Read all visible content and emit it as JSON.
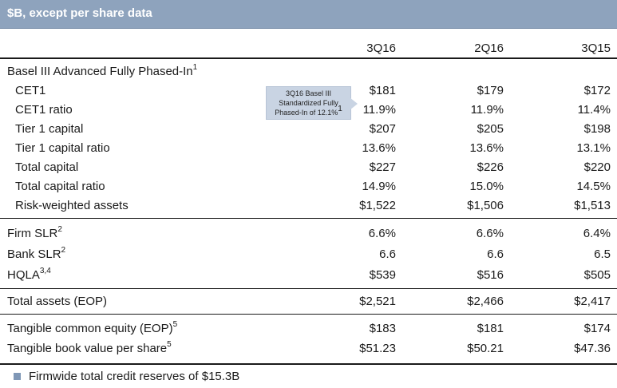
{
  "header": {
    "title": "$B, except per share data"
  },
  "columns": [
    "3Q16",
    "2Q16",
    "3Q15"
  ],
  "section": {
    "label": "Basel III Advanced Fully Phased-In",
    "sup": "1"
  },
  "rows_basel": [
    {
      "label": "CET1",
      "values": [
        "$181",
        "$179",
        "$172"
      ]
    },
    {
      "label": "CET1 ratio",
      "values": [
        "11.9%",
        "11.9%",
        "11.4%"
      ]
    },
    {
      "label": "Tier 1 capital",
      "values": [
        "$207",
        "$205",
        "$198"
      ]
    },
    {
      "label": "Tier 1 capital ratio",
      "values": [
        "13.6%",
        "13.6%",
        "13.1%"
      ]
    },
    {
      "label": "Total capital",
      "values": [
        "$227",
        "$226",
        "$220"
      ]
    },
    {
      "label": "Total capital ratio",
      "values": [
        "14.9%",
        "15.0%",
        "14.5%"
      ]
    },
    {
      "label": "Risk-weighted assets",
      "values": [
        "$1,522",
        "$1,506",
        "$1,513"
      ]
    }
  ],
  "rows_slr": [
    {
      "label": "Firm SLR",
      "sup": "2",
      "values": [
        "6.6%",
        "6.6%",
        "6.4%"
      ]
    },
    {
      "label": "Bank SLR",
      "sup": "2",
      "values": [
        "6.6",
        "6.6",
        "6.5"
      ]
    },
    {
      "label": "HQLA",
      "sup": "3,4",
      "values": [
        "$539",
        "$516",
        "$505"
      ]
    }
  ],
  "row_assets": {
    "label": "Total assets (EOP)",
    "values": [
      "$2,521",
      "$2,466",
      "$2,417"
    ]
  },
  "rows_equity": [
    {
      "label": "Tangible common equity (EOP)",
      "sup": "5",
      "values": [
        "$183",
        "$181",
        "$174"
      ]
    },
    {
      "label": "Tangible book value per share",
      "sup": "5",
      "values": [
        "$51.23",
        "$50.21",
        "$47.36"
      ]
    }
  ],
  "callout": {
    "line1": "3Q16 Basel III",
    "line2": "Standardized Fully",
    "line3": "Phased-In of 12.1%",
    "sup": "1"
  },
  "footer": {
    "text": "Firmwide total credit reserves of $15.3B"
  },
  "colors": {
    "header_bg": "#8ea3bd",
    "callout_bg": "#c9d4e3",
    "bullet": "#7f97b6"
  }
}
